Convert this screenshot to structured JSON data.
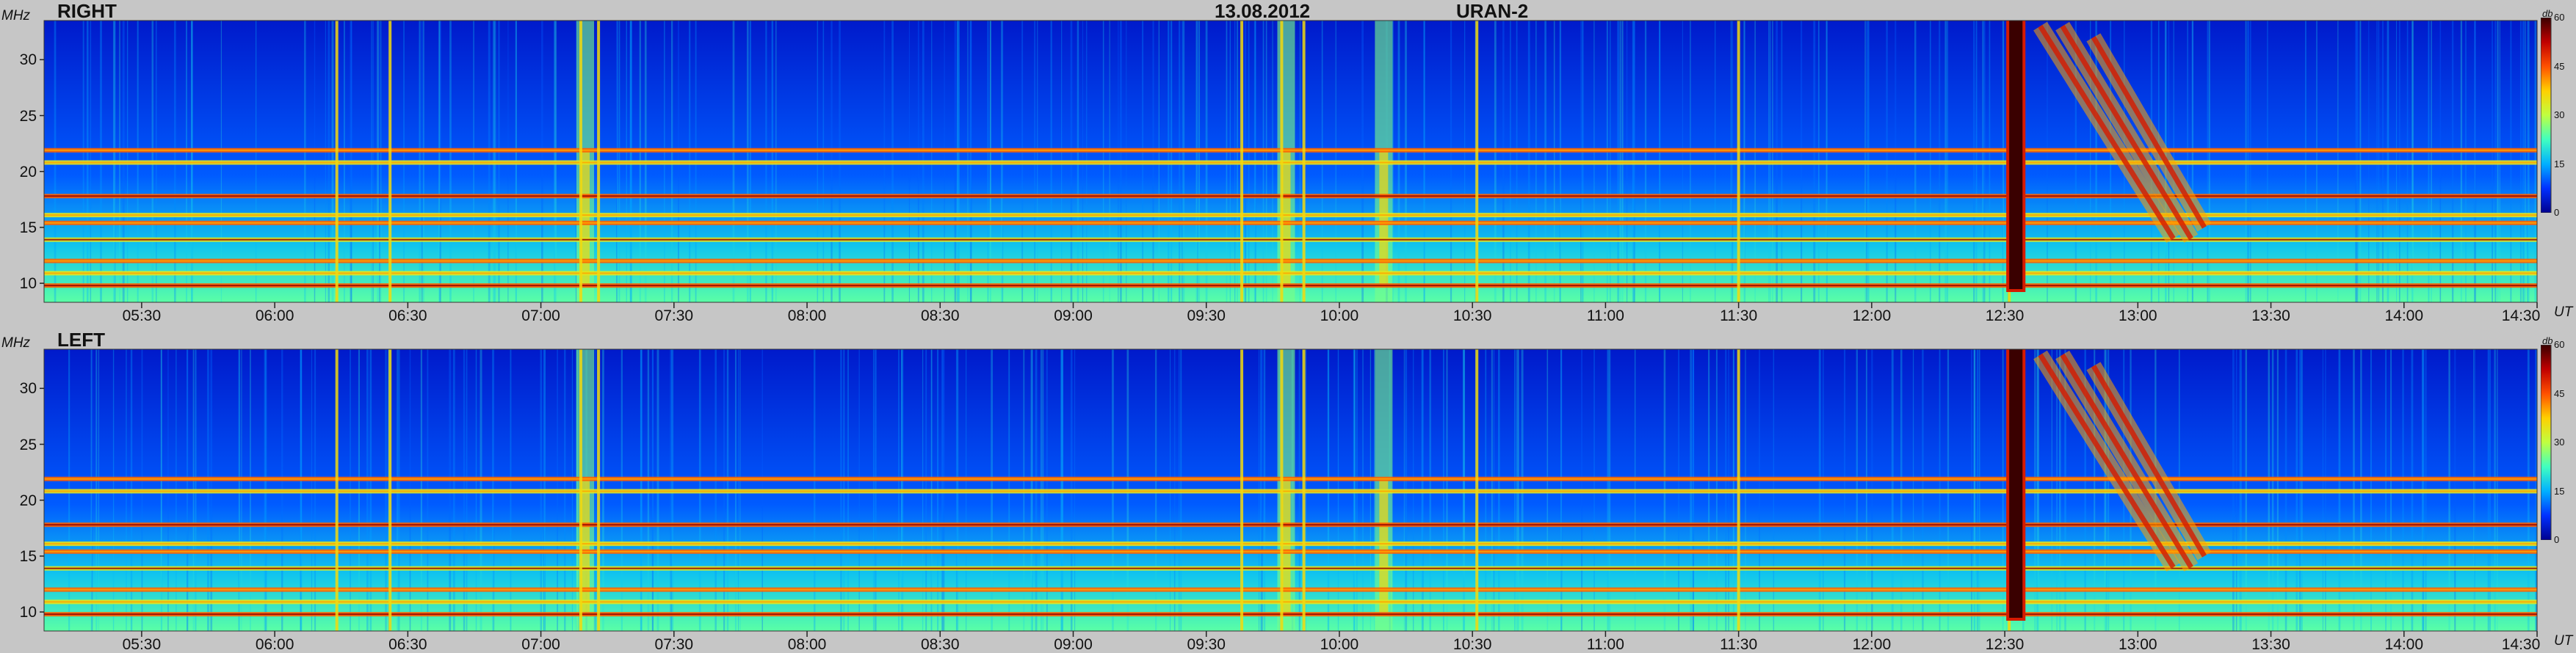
{
  "header": {
    "date": "13.08.2012",
    "instrument": "URAN-2"
  },
  "colorbar": {
    "unit": "db",
    "ticks": [
      "60",
      "45",
      "30",
      "15",
      "0"
    ],
    "stops": [
      "#00008f",
      "#0030ff",
      "#00b0ff",
      "#40ffc0",
      "#c0ff40",
      "#ffd000",
      "#ff5000",
      "#c00000",
      "#3a0000"
    ]
  },
  "chart_data": [
    {
      "type": "heatmap",
      "title": "RIGHT",
      "ylabel": "MHz",
      "xlabel": "UT",
      "ylim": [
        8.3,
        33.5
      ],
      "yticks": [
        "10",
        "15",
        "20",
        "25",
        "30"
      ],
      "xlim": [
        "05:08",
        "14:30"
      ],
      "xticks": [
        "05:30",
        "06:00",
        "06:30",
        "07:00",
        "07:30",
        "08:00",
        "08:30",
        "09:00",
        "09:30",
        "10:00",
        "10:30",
        "11:00",
        "11:30",
        "12:00",
        "12:30",
        "13:00",
        "13:30",
        "14:00",
        "14:30"
      ],
      "zlim": [
        0,
        60
      ],
      "features": {
        "background_db": 5,
        "horizontal_bands_mhz": [
          9.8,
          10.9,
          12.0,
          13.9,
          15.4,
          16.1,
          17.8,
          20.8,
          21.9
        ],
        "narrowband_vertical_times": [
          "06:14",
          "06:26",
          "07:09",
          "07:13",
          "09:38",
          "09:47",
          "09:52",
          "10:31",
          "11:30",
          "12:31"
        ],
        "diffuse_emission_times": [
          "07:10",
          "09:48",
          "10:10"
        ],
        "type_III_burst": {
          "start": "12:31",
          "end": "12:34",
          "peak_db": 60
        },
        "type_II_drift_lanes": [
          {
            "start_time": "12:38",
            "start_mhz": 33,
            "end_time": "13:08",
            "end_mhz": 14
          },
          {
            "start_time": "12:43",
            "start_mhz": 33,
            "end_time": "13:12",
            "end_mhz": 14
          },
          {
            "start_time": "12:50",
            "start_mhz": 32,
            "end_time": "13:15",
            "end_mhz": 15
          }
        ]
      }
    },
    {
      "type": "heatmap",
      "title": "LEFT",
      "ylabel": "MHz",
      "xlabel": "UT",
      "ylim": [
        8.3,
        33.5
      ],
      "yticks": [
        "10",
        "15",
        "20",
        "25",
        "30"
      ],
      "xlim": [
        "05:08",
        "14:30"
      ],
      "xticks": [
        "05:30",
        "06:00",
        "06:30",
        "07:00",
        "07:30",
        "08:00",
        "08:30",
        "09:00",
        "09:30",
        "10:00",
        "10:30",
        "11:00",
        "11:30",
        "12:00",
        "12:30",
        "13:00",
        "13:30",
        "14:00",
        "14:30"
      ],
      "zlim": [
        0,
        60
      ],
      "features": {
        "background_db": 5,
        "horizontal_bands_mhz": [
          9.8,
          10.9,
          12.0,
          13.9,
          15.4,
          16.1,
          17.8,
          20.8,
          21.9
        ],
        "narrowband_vertical_times": [
          "06:14",
          "06:26",
          "07:09",
          "07:13",
          "09:38",
          "09:47",
          "09:52",
          "10:31",
          "11:30",
          "12:31"
        ],
        "diffuse_emission_times": [
          "07:10",
          "09:48",
          "10:10"
        ],
        "type_III_burst": {
          "start": "12:31",
          "end": "12:34",
          "peak_db": 60
        },
        "type_II_drift_lanes": [
          {
            "start_time": "12:38",
            "start_mhz": 33,
            "end_time": "13:08",
            "end_mhz": 14
          },
          {
            "start_time": "12:43",
            "start_mhz": 33,
            "end_time": "13:12",
            "end_mhz": 14
          },
          {
            "start_time": "12:50",
            "start_mhz": 32,
            "end_time": "13:15",
            "end_mhz": 15
          }
        ]
      }
    }
  ]
}
